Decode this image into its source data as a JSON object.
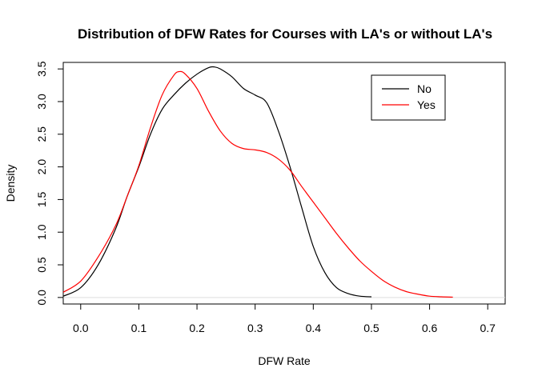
{
  "chart_data": {
    "type": "line",
    "title": "Distribution of DFW Rates for Courses with LA's or without LA's",
    "xlabel": "DFW Rate",
    "ylabel": "Density",
    "xlim": [
      -0.03,
      0.73
    ],
    "ylim": [
      -0.1,
      3.6
    ],
    "xticks": [
      "0.0",
      "0.1",
      "0.2",
      "0.3",
      "0.4",
      "0.5",
      "0.6",
      "0.7"
    ],
    "yticks": [
      "0.0",
      "0.5",
      "1.0",
      "1.5",
      "2.0",
      "2.5",
      "3.0",
      "3.5"
    ],
    "baseline": 0,
    "legend": {
      "position": "top-right"
    },
    "series": [
      {
        "name": "No",
        "color": "#000000",
        "x": [
          -0.03,
          0.0,
          0.03,
          0.06,
          0.08,
          0.1,
          0.12,
          0.14,
          0.16,
          0.18,
          0.2,
          0.22,
          0.23,
          0.24,
          0.26,
          0.28,
          0.3,
          0.32,
          0.34,
          0.36,
          0.38,
          0.4,
          0.42,
          0.44,
          0.46,
          0.48,
          0.5
        ],
        "y": [
          0.02,
          0.15,
          0.5,
          1.05,
          1.55,
          2.0,
          2.5,
          2.88,
          3.1,
          3.28,
          3.42,
          3.52,
          3.53,
          3.5,
          3.38,
          3.2,
          3.1,
          2.98,
          2.55,
          2.0,
          1.38,
          0.78,
          0.38,
          0.15,
          0.06,
          0.02,
          0.01
        ]
      },
      {
        "name": "Yes",
        "color": "#ff0000",
        "x": [
          -0.03,
          0.0,
          0.03,
          0.06,
          0.08,
          0.1,
          0.12,
          0.14,
          0.16,
          0.17,
          0.18,
          0.2,
          0.22,
          0.24,
          0.26,
          0.28,
          0.3,
          0.32,
          0.34,
          0.36,
          0.38,
          0.4,
          0.42,
          0.44,
          0.46,
          0.48,
          0.5,
          0.52,
          0.54,
          0.56,
          0.58,
          0.6,
          0.62,
          0.64
        ],
        "y": [
          0.08,
          0.25,
          0.62,
          1.1,
          1.55,
          2.02,
          2.6,
          3.1,
          3.4,
          3.46,
          3.42,
          3.2,
          2.85,
          2.55,
          2.36,
          2.28,
          2.26,
          2.22,
          2.12,
          1.95,
          1.7,
          1.46,
          1.22,
          0.98,
          0.76,
          0.56,
          0.4,
          0.26,
          0.16,
          0.09,
          0.05,
          0.02,
          0.01,
          0.005
        ]
      }
    ]
  }
}
